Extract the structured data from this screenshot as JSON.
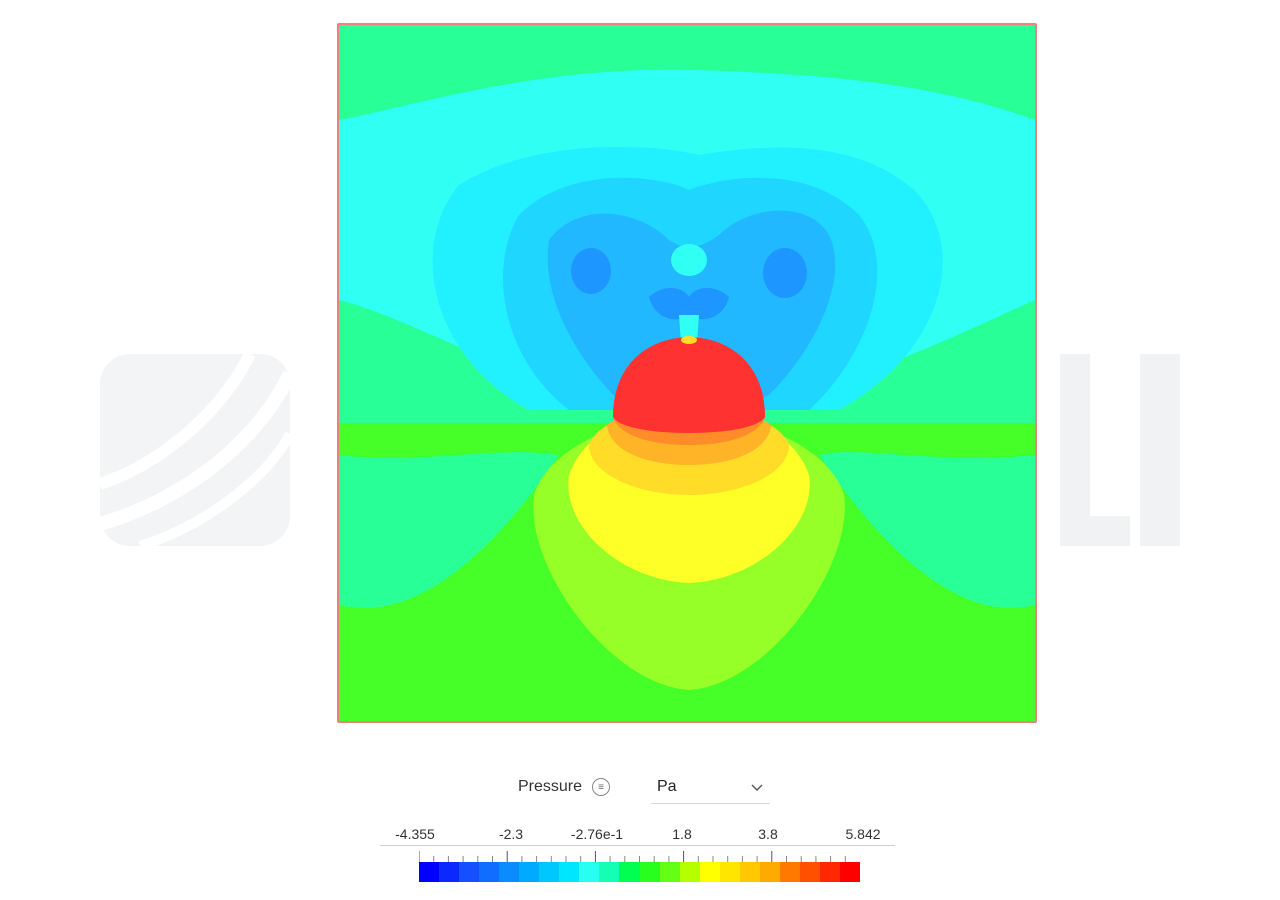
{
  "legend": {
    "field_name": "Pressure",
    "menu_icon": "list-icon",
    "unit": "Pa",
    "dropdown_icon": "chevron-down-icon",
    "tick_labels": [
      "-4.355",
      "-2.3",
      "-2.76e-1",
      "1.8",
      "3.8",
      "5.842"
    ],
    "colors": [
      "#0000ff",
      "#0a28ff",
      "#1450ff",
      "#0f6eff",
      "#0a8cff",
      "#00aaff",
      "#00c8ff",
      "#00e6ff",
      "#28fff0",
      "#14ffb4",
      "#00ff50",
      "#28ff1e",
      "#64ff14",
      "#b4ff00",
      "#ffff00",
      "#ffe600",
      "#ffc800",
      "#ffaa00",
      "#ff7800",
      "#ff5000",
      "#ff2800",
      "#ff0000"
    ]
  },
  "plot": {
    "type": "contour",
    "field": "Pressure",
    "min": -4.355,
    "max": 5.842,
    "colors": {
      "background_top": "#28ff96",
      "band_cyan_light": "#30fff4",
      "band_cyan": "#20f0ff",
      "band_sky": "#1ed6ff",
      "band_blue": "#22b8ff",
      "band_deep": "#1e96ff",
      "ground": "#46ff28",
      "band_yellowgreen": "#96ff28",
      "band_yellow": "#ffff28",
      "band_gold": "#ffdc28",
      "band_orange": "#ffb428",
      "band_orange2": "#ff8c28",
      "cap_red": "#ff3232"
    }
  }
}
